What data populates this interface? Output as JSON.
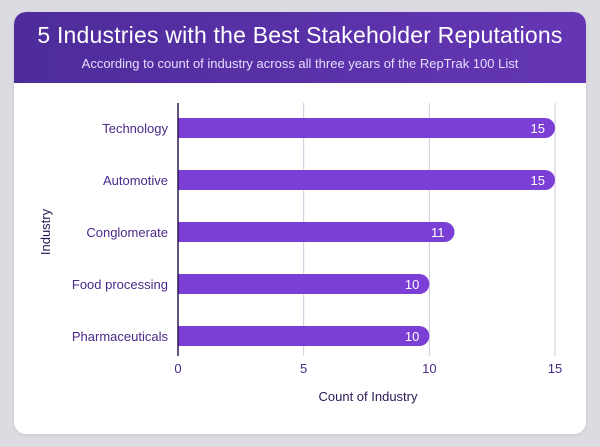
{
  "header": {
    "title": "5 Industries with the Best Stakeholder Reputations",
    "subtitle": "According to count of industry across all three years of the RepTrak 100 List"
  },
  "colors": {
    "bar": "#7b3fd6",
    "header": "#5a31a8",
    "text": "#4a2a8a",
    "grid": "#cfc9dc"
  },
  "chart_data": {
    "type": "bar",
    "orientation": "horizontal",
    "title": "5 Industries with the Best Stakeholder Reputations",
    "subtitle": "According to count of industry across all three years of the RepTrak 100 List",
    "xlabel": "Count of Industry",
    "ylabel": "Industry",
    "categories": [
      "Technology",
      "Automotive",
      "Conglomerate",
      "Food processing",
      "Pharmaceuticals"
    ],
    "values": [
      15,
      15,
      11,
      10,
      10
    ],
    "xlim": [
      0,
      15
    ],
    "xticks": [
      0,
      5,
      10,
      15
    ],
    "grid": true,
    "data_labels": true
  }
}
